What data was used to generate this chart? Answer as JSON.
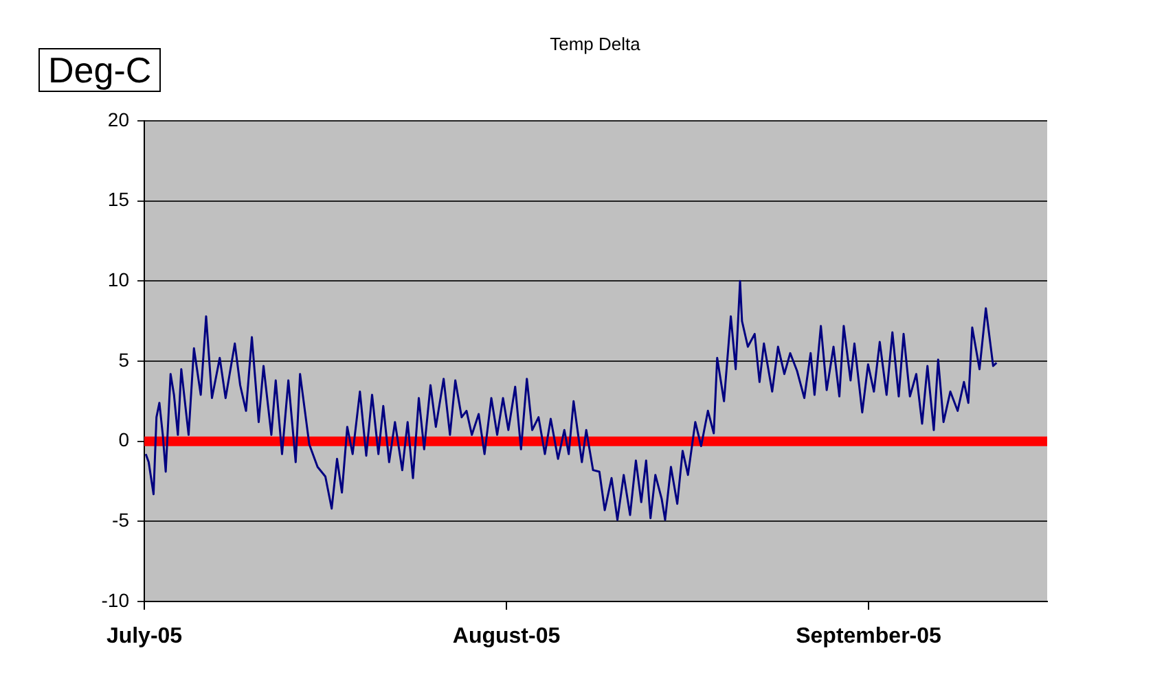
{
  "chart_data": {
    "type": "line",
    "title": "Temp Delta",
    "ylabel": "Deg-C",
    "xlim": [
      "2005-07-01",
      "2005-09-16T07:00"
    ],
    "xticks": [
      {
        "value": "2005-07-01",
        "label": "July-05"
      },
      {
        "value": "2005-08-01",
        "label": "August-05"
      },
      {
        "value": "2005-09-01",
        "label": "September-05"
      }
    ],
    "ylim": [
      -10,
      20
    ],
    "yticks": [
      -10,
      -5,
      0,
      5,
      10,
      15,
      20
    ],
    "grid": "y",
    "legend": false,
    "marker": "none",
    "line_style": "solid",
    "ref_lines": [
      {
        "axis": "y",
        "value": 0,
        "color": "#ff0000"
      }
    ],
    "series": [
      {
        "color": "#000080",
        "x": [
          "2005-07-01T03:00",
          "2005-07-01T09:00",
          "2005-07-01T19:00",
          "2005-07-02T01:00",
          "2005-07-02T07:00",
          "2005-07-02T14:00",
          "2005-07-02T20:00",
          "2005-07-03T06:00",
          "2005-07-03T13:00",
          "2005-07-03T21:00",
          "2005-07-04T04:00",
          "2005-07-04T19:00",
          "2005-07-05T06:00",
          "2005-07-05T20:00",
          "2005-07-06T07:00",
          "2005-07-06T19:00",
          "2005-07-07T11:00",
          "2005-07-07T23:00",
          "2005-07-08T18:00",
          "2005-07-09T05:00",
          "2005-07-09T17:00",
          "2005-07-10T05:00",
          "2005-07-10T19:00",
          "2005-07-11T05:00",
          "2005-07-11T21:00",
          "2005-07-12T06:00",
          "2005-07-12T19:00",
          "2005-07-13T08:00",
          "2005-07-13T23:00",
          "2005-07-14T08:00",
          "2005-07-15T03:00",
          "2005-07-15T20:00",
          "2005-07-16T12:00",
          "2005-07-17T01:00",
          "2005-07-17T12:00",
          "2005-07-17T22:00",
          "2005-07-18T09:00",
          "2005-07-18T20:00",
          "2005-07-19T11:00",
          "2005-07-20T00:00",
          "2005-07-20T12:00",
          "2005-07-21T01:00",
          "2005-07-21T11:00",
          "2005-07-21T23:00",
          "2005-07-22T11:00",
          "2005-07-23T02:00",
          "2005-07-23T13:00",
          "2005-07-24T00:00",
          "2005-07-24T12:00",
          "2005-07-24T23:00",
          "2005-07-25T12:00",
          "2005-07-25T23:00",
          "2005-07-26T15:00",
          "2005-07-27T04:00",
          "2005-07-27T15:00",
          "2005-07-28T04:00",
          "2005-07-28T14:00",
          "2005-07-29T01:00",
          "2005-07-29T15:00",
          "2005-07-30T03:00",
          "2005-07-30T17:00",
          "2005-07-31T05:00",
          "2005-07-31T17:00",
          "2005-08-01T04:00",
          "2005-08-01T18:00",
          "2005-08-02T06:00",
          "2005-08-02T18:00",
          "2005-08-03T05:00",
          "2005-08-03T18:00",
          "2005-08-04T07:00",
          "2005-08-04T19:00",
          "2005-08-05T10:00",
          "2005-08-05T23:00",
          "2005-08-06T08:00",
          "2005-08-06T18:00",
          "2005-08-07T11:00",
          "2005-08-07T20:00",
          "2005-08-08T10:00",
          "2005-08-08T23:00",
          "2005-08-09T10:00",
          "2005-08-10T00:00",
          "2005-08-10T12:00",
          "2005-08-11T01:00",
          "2005-08-11T14:00",
          "2005-08-12T02:00",
          "2005-08-12T13:00",
          "2005-08-12T23:00",
          "2005-08-13T08:00",
          "2005-08-13T18:00",
          "2005-08-14T07:00",
          "2005-08-14T14:00",
          "2005-08-15T02:00",
          "2005-08-15T15:00",
          "2005-08-16T02:00",
          "2005-08-16T13:00",
          "2005-08-17T04:00",
          "2005-08-17T16:00",
          "2005-08-18T06:00",
          "2005-08-18T18:00",
          "2005-08-19T01:00",
          "2005-08-19T15:00",
          "2005-08-20T05:00",
          "2005-08-20T15:00",
          "2005-08-21T00:00",
          "2005-08-21T04:00",
          "2005-08-21T16:00",
          "2005-08-22T06:00",
          "2005-08-22T16:00",
          "2005-08-23T01:00",
          "2005-08-23T18:00",
          "2005-08-24T06:00",
          "2005-08-24T19:00",
          "2005-08-25T07:00",
          "2005-08-25T21:00",
          "2005-08-26T12:00",
          "2005-08-27T01:00",
          "2005-08-27T09:00",
          "2005-08-27T22:00",
          "2005-08-28T10:00",
          "2005-08-29T00:00",
          "2005-08-29T12:00",
          "2005-08-29T21:00",
          "2005-08-30T11:00",
          "2005-08-30T19:00",
          "2005-08-31T11:00",
          "2005-08-31T23:00",
          "2005-09-01T11:00",
          "2005-09-01T23:00",
          "2005-09-02T13:00",
          "2005-09-03T01:00",
          "2005-09-03T14:00",
          "2005-09-04T00:00",
          "2005-09-04T13:00",
          "2005-09-05T02:00",
          "2005-09-05T14:00",
          "2005-09-06T01:00",
          "2005-09-06T14:00",
          "2005-09-06T23:00",
          "2005-09-07T10:00",
          "2005-09-08T00:00",
          "2005-09-08T15:00",
          "2005-09-09T04:00",
          "2005-09-09T13:00",
          "2005-09-09T21:00",
          "2005-09-10T12:00",
          "2005-09-11T01:00",
          "2005-09-11T16:00",
          "2005-09-11T23:00"
        ],
        "values": [
          -0.8,
          -1.3,
          -3.3,
          1.5,
          2.4,
          0.4,
          -1.9,
          4.2,
          2.9,
          0.4,
          4.5,
          0.4,
          5.8,
          2.9,
          7.8,
          2.7,
          5.2,
          2.7,
          6.1,
          3.5,
          1.9,
          6.5,
          1.2,
          4.7,
          0.4,
          3.8,
          -0.8,
          3.8,
          -1.3,
          4.2,
          -0.2,
          -1.6,
          -2.2,
          -4.2,
          -1.1,
          -3.2,
          0.9,
          -0.8,
          3.1,
          -0.9,
          2.9,
          -0.8,
          2.2,
          -1.3,
          1.2,
          -1.8,
          1.2,
          -2.3,
          2.7,
          -0.5,
          3.5,
          0.9,
          3.9,
          0.4,
          3.8,
          1.5,
          1.9,
          0.4,
          1.7,
          -0.8,
          2.7,
          0.4,
          2.7,
          0.7,
          3.4,
          -0.5,
          3.9,
          0.7,
          1.5,
          -0.8,
          1.4,
          -1.1,
          0.7,
          -0.8,
          2.5,
          -1.3,
          0.7,
          -1.8,
          -1.9,
          -4.3,
          -2.3,
          -4.9,
          -2.1,
          -4.6,
          -1.2,
          -3.8,
          -1.2,
          -4.8,
          -2.1,
          -3.6,
          -4.9,
          -1.6,
          -3.9,
          -0.6,
          -2.1,
          1.2,
          -0.3,
          1.9,
          0.5,
          5.2,
          2.5,
          7.8,
          4.5,
          10.0,
          7.5,
          5.9,
          6.7,
          3.7,
          6.1,
          3.1,
          5.9,
          4.2,
          5.5,
          4.4,
          2.7,
          5.5,
          2.9,
          7.2,
          3.2,
          5.9,
          2.8,
          7.2,
          3.8,
          6.1,
          1.8,
          4.8,
          3.1,
          6.2,
          2.9,
          6.8,
          2.8,
          6.7,
          2.8,
          4.2,
          1.1,
          4.7,
          0.7,
          5.1,
          1.2,
          3.1,
          1.9,
          3.7,
          2.4,
          7.1,
          4.5,
          8.3,
          4.7,
          4.9
        ]
      }
    ]
  }
}
